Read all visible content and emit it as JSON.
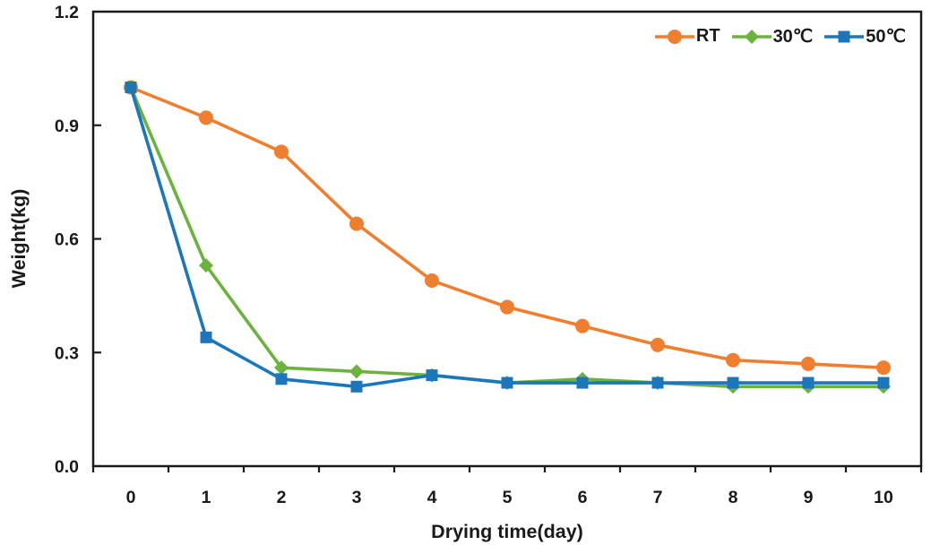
{
  "chart_data": {
    "type": "line",
    "title": "",
    "xlabel": "Drying time(day)",
    "ylabel": "Weight(kg)",
    "x": [
      0,
      1,
      2,
      3,
      4,
      5,
      6,
      7,
      8,
      9,
      10
    ],
    "xticks": [
      "0",
      "1",
      "2",
      "3",
      "4",
      "5",
      "6",
      "7",
      "8",
      "9",
      "10"
    ],
    "yticks": [
      "0.0",
      "0.3",
      "0.6",
      "0.9",
      "1.2"
    ],
    "ytick_values": [
      0.0,
      0.3,
      0.6,
      0.9,
      1.2
    ],
    "ylim": [
      0.0,
      1.2
    ],
    "grid": false,
    "legend_position": "top-right-inside",
    "frame": true,
    "axis_color": "#1a1a1a",
    "background_color": "#ffffff",
    "series": [
      {
        "name": "RT",
        "color": "#EF7F2E",
        "marker": "circle",
        "values": [
          1.0,
          0.92,
          0.83,
          0.64,
          0.49,
          0.42,
          0.37,
          0.32,
          0.28,
          0.27,
          0.26
        ]
      },
      {
        "name": "30℃",
        "color": "#6CB33E",
        "marker": "diamond",
        "values": [
          1.0,
          0.53,
          0.26,
          0.25,
          0.24,
          0.22,
          0.23,
          0.22,
          0.21,
          0.21,
          0.21
        ]
      },
      {
        "name": "50℃",
        "color": "#1B76BC",
        "marker": "square",
        "values": [
          1.0,
          0.34,
          0.23,
          0.21,
          0.24,
          0.22,
          0.22,
          0.22,
          0.22,
          0.22,
          0.22
        ]
      }
    ]
  }
}
